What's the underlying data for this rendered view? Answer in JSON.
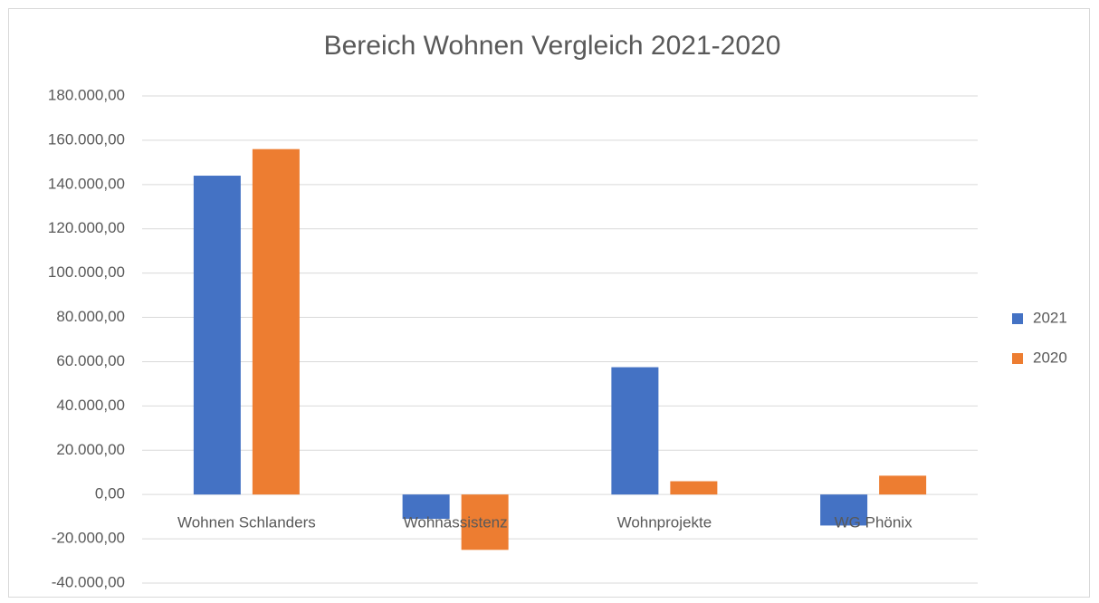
{
  "chart_data": {
    "type": "bar",
    "title": "Bereich Wohnen Vergleich 2021-2020",
    "categories": [
      "Wohnen Schlanders",
      "Wohnassistenz",
      "Wohnprojekte",
      "WG Phönix"
    ],
    "series": [
      {
        "name": "2021",
        "color": "#4472c4",
        "values": [
          144000,
          -11000,
          57500,
          -14000
        ]
      },
      {
        "name": "2020",
        "color": "#ed7d31",
        "values": [
          156000,
          -25000,
          6000,
          8500
        ]
      }
    ],
    "ylim": [
      -40000,
      180000
    ],
    "yticks": [
      {
        "value": -40000,
        "label": "-40.000,00"
      },
      {
        "value": -20000,
        "label": "-20.000,00"
      },
      {
        "value": 0,
        "label": "0,00"
      },
      {
        "value": 20000,
        "label": "20.000,00"
      },
      {
        "value": 40000,
        "label": "40.000,00"
      },
      {
        "value": 60000,
        "label": "60.000,00"
      },
      {
        "value": 80000,
        "label": "80.000,00"
      },
      {
        "value": 100000,
        "label": "100.000,00"
      },
      {
        "value": 120000,
        "label": "120.000,00"
      },
      {
        "value": 140000,
        "label": "140.000,00"
      },
      {
        "value": 160000,
        "label": "160.000,00"
      },
      {
        "value": 180000,
        "label": "180.000,00"
      }
    ],
    "grid": true,
    "legend": "right"
  }
}
